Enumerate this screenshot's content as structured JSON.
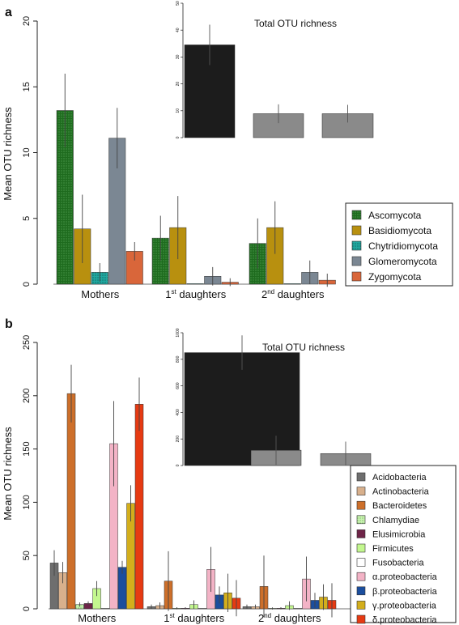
{
  "figure": {
    "panels": [
      "a",
      "b"
    ]
  },
  "chart_data": [
    {
      "panel": "a",
      "type": "bar",
      "ylabel": "Mean OTU richness",
      "ylim": [
        0,
        20
      ],
      "yticks": [
        "0",
        "5",
        "10",
        "15",
        "20"
      ],
      "categories": [
        {
          "base": "Mothers",
          "sup": "",
          "rest": ""
        },
        {
          "base": "1",
          "sup": "st",
          "rest": " daughters"
        },
        {
          "base": "2",
          "sup": "nd",
          "rest": " daughters"
        }
      ],
      "legend": {
        "position": "right"
      },
      "series": [
        {
          "name": "Ascomycota",
          "color": "#1e6b1e",
          "pattern": "dots",
          "values": [
            13.2,
            3.5,
            3.1
          ],
          "errors": [
            2.8,
            1.7,
            1.9
          ]
        },
        {
          "name": "Basidiomycota",
          "color": "#b8900f",
          "pattern": "",
          "values": [
            4.2,
            4.3,
            4.3
          ],
          "errors": [
            2.6,
            2.4,
            2.0
          ]
        },
        {
          "name": "Chytridiomycota",
          "color": "#20a8a0",
          "pattern": "dots",
          "values": [
            0.9,
            0.0,
            0.0
          ],
          "errors": [
            0.7,
            0,
            0
          ]
        },
        {
          "name": "Glomeromycota",
          "color": "#7b8793",
          "pattern": "",
          "values": [
            11.1,
            0.6,
            0.9
          ],
          "errors": [
            2.3,
            0.7,
            0.9
          ]
        },
        {
          "name": "Zygomycota",
          "color": "#d9663a",
          "pattern": "",
          "values": [
            2.5,
            0.15,
            0.3
          ],
          "errors": [
            0.7,
            0.3,
            0.5
          ]
        }
      ],
      "inset": {
        "title": "Total OTU richness",
        "ylim": [
          0,
          50
        ],
        "yticks": [
          "0",
          "10",
          "20",
          "30",
          "40",
          "50"
        ],
        "values": [
          34.5,
          8.9,
          8.9
        ],
        "errors": [
          7.5,
          3.5,
          3.3
        ],
        "colors": [
          "#1c1c1c",
          "#8a8a8a",
          "#8a8a8a"
        ]
      }
    },
    {
      "panel": "b",
      "type": "bar",
      "ylabel": "Mean OTU richness",
      "ylim": [
        0,
        250
      ],
      "yticks": [
        "0",
        "50",
        "100",
        "150",
        "200",
        "250"
      ],
      "categories": [
        {
          "base": "Mothers",
          "sup": "",
          "rest": ""
        },
        {
          "base": "1",
          "sup": "st",
          "rest": " daughters"
        },
        {
          "base": "2",
          "sup": "nd",
          "rest": " daughters"
        }
      ],
      "legend": {
        "position": "right"
      },
      "series": [
        {
          "name": "Acidobacteria",
          "color": "#6e6e6e",
          "pattern": "",
          "values": [
            43,
            2,
            2
          ],
          "errors": [
            12,
            2,
            2
          ]
        },
        {
          "name": "Actinobacteria",
          "color": "#d8b08c",
          "pattern": "",
          "values": [
            34,
            3,
            2
          ],
          "errors": [
            10,
            3,
            2
          ]
        },
        {
          "name": "Bacteroidetes",
          "color": "#cd6f2a",
          "pattern": "",
          "values": [
            202,
            26,
            21
          ],
          "errors": [
            27,
            28,
            29
          ]
        },
        {
          "name": "Chlamydiae",
          "color": "#b6e89a",
          "pattern": "dots",
          "values": [
            4,
            0.5,
            0.3
          ],
          "errors": [
            2,
            1,
            1
          ]
        },
        {
          "name": "Elusimicrobia",
          "color": "#6e2448",
          "pattern": "",
          "values": [
            5,
            0.5,
            0.5
          ],
          "errors": [
            2,
            1,
            1
          ]
        },
        {
          "name": "Firmicutes",
          "color": "#c3f78f",
          "pattern": "",
          "values": [
            19,
            4,
            3
          ],
          "errors": [
            7,
            4,
            4
          ]
        },
        {
          "name": "Fusobacteria",
          "color": "#ffffff",
          "pattern": "",
          "values": [
            0.4,
            0.3,
            0.3
          ],
          "errors": [
            0,
            0,
            0
          ]
        },
        {
          "name": "α.proteobacteria",
          "color": "#f3b3c6",
          "pattern": "",
          "values": [
            155,
            37,
            28
          ],
          "errors": [
            40,
            21,
            21
          ]
        },
        {
          "name": "β.proteobacteria",
          "color": "#1b4e9e",
          "pattern": "",
          "values": [
            39,
            13,
            8
          ],
          "errors": [
            6,
            8,
            7
          ]
        },
        {
          "name": "γ.proteobacteria",
          "color": "#d3ae1c",
          "pattern": "",
          "values": [
            99,
            15,
            11
          ],
          "errors": [
            17,
            18,
            12
          ]
        },
        {
          "name": "δ.proteobacteria",
          "color": "#e63a12",
          "pattern": "",
          "values": [
            192,
            10,
            8
          ],
          "errors": [
            25,
            17,
            16
          ]
        }
      ],
      "inset": {
        "title": "Total OTU richness",
        "ylim": [
          0,
          1000
        ],
        "yticks": [
          "0",
          "200",
          "400",
          "600",
          "800",
          "1000"
        ],
        "values": [
          850,
          115,
          90
        ],
        "errors": [
          130,
          110,
          90
        ],
        "colors": [
          "#1c1c1c",
          "#8a8a8a",
          "#8a8a8a"
        ]
      }
    }
  ]
}
